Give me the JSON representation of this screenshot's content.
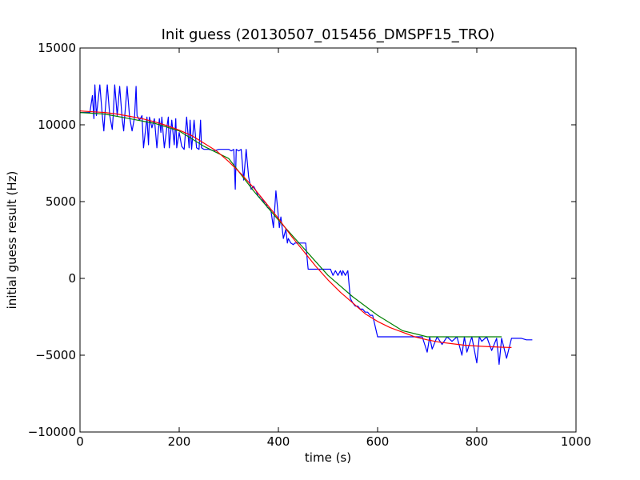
{
  "chart_data": {
    "type": "line",
    "title": "Init guess (20130507_015456_DMSPF15_TRO)",
    "xlabel": "time (s)",
    "ylabel": "initial guess result (Hz)",
    "xlim": [
      0,
      1000
    ],
    "ylim": [
      -10000,
      15000
    ],
    "xticks": [
      0,
      200,
      400,
      600,
      800,
      1000
    ],
    "yticks": [
      -10000,
      -5000,
      0,
      5000,
      10000,
      15000
    ],
    "xtick_labels": [
      "0",
      "200",
      "400",
      "600",
      "800",
      "1000"
    ],
    "ytick_labels": [
      "−10000",
      "−5000",
      "0",
      "5000",
      "10000",
      "15000"
    ],
    "grid": false,
    "legend": "none",
    "series": [
      {
        "color": "#0000ff",
        "x": [
          0,
          20,
          25,
          28,
          30,
          33,
          40,
          45,
          48,
          50,
          55,
          60,
          65,
          67,
          70,
          75,
          80,
          85,
          88,
          90,
          95,
          100,
          105,
          110,
          113,
          115,
          120,
          125,
          128,
          135,
          138,
          140,
          145,
          150,
          155,
          160,
          163,
          165,
          170,
          175,
          178,
          180,
          185,
          190,
          193,
          195,
          200,
          205,
          210,
          215,
          220,
          222,
          225,
          230,
          235,
          240,
          243,
          245,
          250,
          260,
          270,
          280,
          290,
          300,
          305,
          310,
          313,
          315,
          320,
          325,
          330,
          335,
          340,
          345,
          350,
          355,
          360,
          365,
          370,
          375,
          378,
          380,
          385,
          390,
          395,
          400,
          402,
          405,
          410,
          415,
          418,
          420,
          425,
          430,
          433,
          435,
          440,
          445,
          450,
          455,
          460,
          465,
          470,
          480,
          490,
          500,
          503,
          505,
          510,
          515,
          520,
          525,
          528,
          530,
          535,
          540,
          545,
          550,
          555,
          560,
          565,
          570,
          575,
          580,
          585,
          590,
          600,
          610,
          620,
          630,
          640,
          650,
          660,
          670,
          680,
          690,
          700,
          705,
          710,
          720,
          730,
          740,
          750,
          760,
          770,
          775,
          780,
          790,
          800,
          805,
          810,
          820,
          830,
          840,
          845,
          850,
          860,
          870,
          880,
          890,
          900,
          912
        ],
        "y": [
          10800,
          10800,
          11900,
          10400,
          12600,
          10600,
          12600,
          10600,
          9600,
          10600,
          12600,
          10600,
          9700,
          10600,
          12600,
          10600,
          12500,
          10400,
          9600,
          10500,
          12500,
          10500,
          9600,
          10500,
          12500,
          10600,
          10300,
          10600,
          8500,
          10500,
          8700,
          10500,
          9800,
          10400,
          8500,
          10400,
          9500,
          10500,
          8500,
          9800,
          10500,
          8500,
          10300,
          8700,
          10400,
          8500,
          9500,
          8600,
          8400,
          10500,
          8500,
          10300,
          8400,
          10300,
          8500,
          8400,
          10300,
          8500,
          8400,
          8400,
          8300,
          8400,
          8400,
          8400,
          8300,
          8400,
          5800,
          8400,
          8300,
          8400,
          6400,
          8400,
          6600,
          5800,
          6000,
          5700,
          5300,
          5300,
          5000,
          4900,
          4600,
          4600,
          4400,
          3300,
          5700,
          4000,
          3300,
          4000,
          2600,
          3200,
          2300,
          2600,
          2300,
          2200,
          2300,
          2300,
          2300,
          2300,
          2300,
          2300,
          600,
          600,
          600,
          600,
          600,
          600,
          600,
          600,
          200,
          500,
          200,
          500,
          200,
          500,
          200,
          500,
          -1300,
          -1600,
          -1800,
          -1800,
          -2000,
          -2000,
          -2200,
          -2200,
          -2400,
          -2400,
          -3800,
          -3800,
          -3800,
          -3800,
          -3800,
          -3800,
          -3800,
          -3800,
          -3800,
          -3800,
          -4800,
          -3800,
          -4600,
          -3800,
          -4300,
          -3800,
          -4100,
          -3800,
          -5000,
          -3800,
          -4800,
          -3800,
          -5500,
          -3800,
          -4100,
          -3800,
          -4700,
          -3900,
          -5600,
          -3900,
          -5200,
          -3900,
          -3900,
          -3900,
          -4000,
          -4000
        ]
      },
      {
        "color": "#008000",
        "x": [
          0,
          50,
          100,
          150,
          200,
          250,
          300,
          350,
          400,
          450,
          500,
          550,
          600,
          650,
          700,
          750,
          800,
          850
        ],
        "y": [
          10800,
          10700,
          10400,
          10100,
          9600,
          8600,
          7800,
          5700,
          3800,
          2000,
          200,
          -1200,
          -2400,
          -3400,
          -3800,
          -3800,
          -3800,
          -3800
        ]
      },
      {
        "color": "#ff0000",
        "x": [
          0,
          25,
          50,
          75,
          100,
          125,
          150,
          175,
          200,
          225,
          250,
          275,
          300,
          325,
          350,
          375,
          400,
          425,
          450,
          475,
          500,
          525,
          550,
          575,
          600,
          625,
          650,
          675,
          700,
          725,
          750,
          775,
          800,
          825,
          850,
          870
        ],
        "y": [
          10900,
          10850,
          10800,
          10700,
          10550,
          10400,
          10200,
          9950,
          9650,
          9300,
          8800,
          8300,
          7600,
          6800,
          5900,
          4900,
          3900,
          2800,
          1800,
          800,
          -100,
          -900,
          -1600,
          -2300,
          -2800,
          -3200,
          -3500,
          -3800,
          -4000,
          -4150,
          -4250,
          -4350,
          -4400,
          -4450,
          -4480,
          -4500
        ]
      }
    ]
  }
}
